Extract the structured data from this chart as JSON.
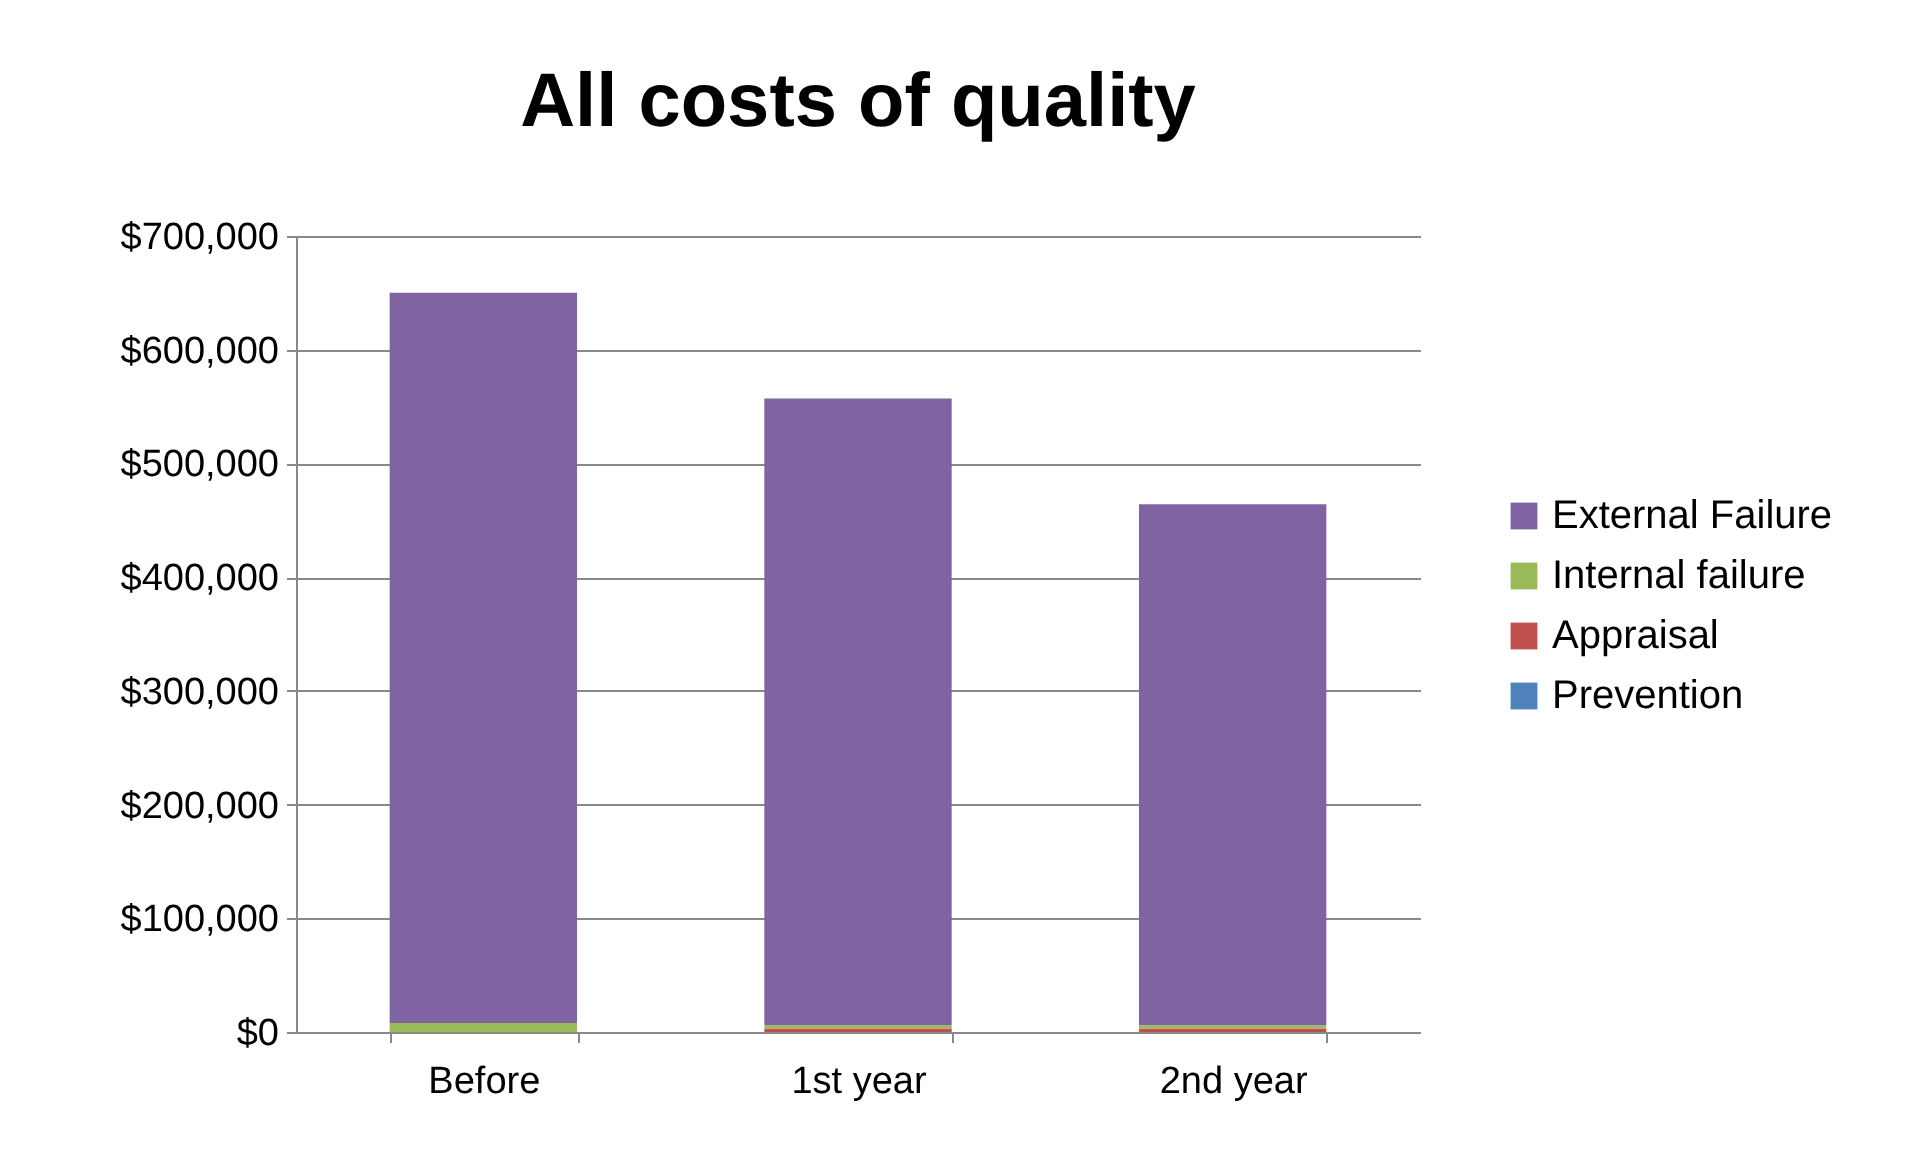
{
  "chart_data": {
    "type": "bar",
    "title": "All costs of quality",
    "stacked": true,
    "categories": [
      "Before",
      "1st year",
      "2nd year"
    ],
    "series": [
      {
        "name": "Prevention",
        "color": "#4f81bd",
        "values": [
          null,
          null,
          null
        ]
      },
      {
        "name": "Appraisal",
        "color": "#c0504d",
        "values": [
          0,
          3000,
          3000
        ]
      },
      {
        "name": "Internal failure",
        "color": "#9bbb59",
        "values": [
          8000,
          3000,
          3000
        ]
      },
      {
        "name": "External Failure",
        "color": "#8064a2",
        "values": [
          642000,
          551000,
          458000
        ]
      }
    ],
    "ylim": [
      0,
      700000
    ],
    "yticks": [
      {
        "value": 0,
        "label": "$0"
      },
      {
        "value": 100000,
        "label": "$100,000"
      },
      {
        "value": 200000,
        "label": "$200,000"
      },
      {
        "value": 300000,
        "label": "$300,000"
      },
      {
        "value": 400000,
        "label": "$400,000"
      },
      {
        "value": 500000,
        "label": "$500,000"
      },
      {
        "value": 600000,
        "label": "$600,000"
      },
      {
        "value": 700000,
        "label": "$700,000"
      }
    ],
    "grid": "y",
    "legend": "right"
  }
}
